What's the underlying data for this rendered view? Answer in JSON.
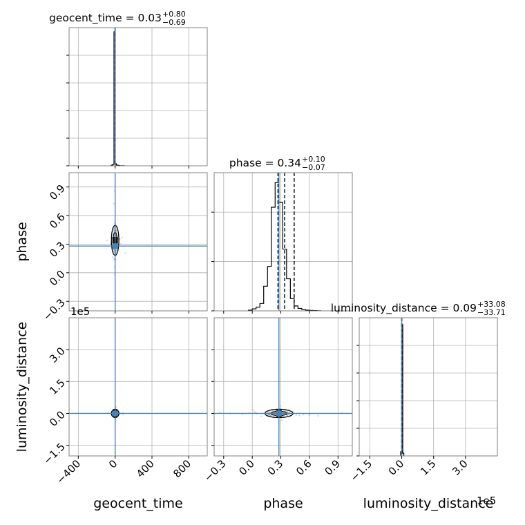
{
  "chart_data": {
    "type": "corner",
    "parameters": [
      "geocent_time",
      "phase",
      "luminosity_distance"
    ],
    "titles": [
      {
        "name": "geocent_time",
        "median": "0.03",
        "plus": "+0.80",
        "minus": "−0.69"
      },
      {
        "name": "phase",
        "median": "0.34",
        "plus": "+0.10",
        "minus": "−0.07"
      },
      {
        "name": "luminosity_distance",
        "median": "0.09",
        "plus": "+33.08",
        "minus": "−33.71"
      }
    ],
    "axes": {
      "geocent_time": {
        "range": [
          -500,
          1000
        ],
        "ticks": [
          -400,
          0,
          400,
          800
        ],
        "tick_labels": [
          "−400",
          "0",
          "400",
          "800"
        ]
      },
      "phase": {
        "range": [
          -0.4,
          1.05
        ],
        "ticks": [
          -0.3,
          0.0,
          0.3,
          0.6,
          0.9
        ],
        "tick_labels": [
          "−0.3",
          "0.0",
          "0.3",
          "0.6",
          "0.9"
        ]
      },
      "luminosity_distance": {
        "range": [
          -2.0,
          4.5
        ],
        "ticks": [
          -1.5,
          0.0,
          1.5,
          3.0
        ],
        "tick_labels": [
          "−1.5",
          "0.0",
          "1.5",
          "3.0"
        ],
        "offset_text": "1e5"
      }
    },
    "truths": {
      "geocent_time": 0,
      "phase": 0.28,
      "luminosity_distance": 0
    },
    "quantile_lines": {
      "geocent_time": [
        -0.66,
        0.03,
        0.83
      ],
      "phase": [
        0.27,
        0.34,
        0.44
      ],
      "luminosity_distance": [
        -0.0003,
        0.0,
        0.0003
      ]
    },
    "histograms": {
      "geocent_time": {
        "edges": [
          -50,
          -37.5,
          -25,
          -12.5,
          0,
          12.5,
          25,
          37.5,
          50,
          62.5,
          75,
          87.5,
          100
        ],
        "counts": [
          0.1,
          0.5,
          1.0,
          97,
          1.5,
          0.6,
          0.4,
          0.2,
          0.1,
          0.1,
          0.05,
          0.05
        ]
      },
      "phase": {
        "edges": [
          -0.04,
          0.0,
          0.04,
          0.08,
          0.12,
          0.16,
          0.2,
          0.24,
          0.28,
          0.32,
          0.36,
          0.4,
          0.44,
          0.48,
          0.52,
          0.56,
          0.6,
          0.64,
          0.68,
          0.72
        ],
        "counts": [
          0.3,
          0.8,
          1.5,
          3,
          10,
          18,
          42,
          52,
          44,
          25,
          13,
          5,
          2,
          1,
          0.5,
          0.3,
          0.2,
          0.1,
          0.05
        ]
      },
      "luminosity_distance": {
        "edges": [
          -0.05,
          0.0,
          0.05,
          0.1
        ],
        "counts": [
          3,
          95,
          2
        ]
      }
    },
    "y_max": {
      "geocent_time": 100,
      "phase": 56,
      "luminosity_distance": 100
    },
    "hist_ticks": {
      "geocent_time": [
        0,
        20,
        40,
        60,
        80
      ],
      "phase": [
        0,
        20,
        40
      ],
      "luminosity_distance": [
        0,
        20,
        40,
        60,
        80
      ]
    },
    "grid": true
  },
  "colors": {
    "truth": "#4682b4",
    "hist": "#000000",
    "scatter": "#9a9a9a",
    "grid": "#b0b0b0",
    "spine": "#808080"
  }
}
